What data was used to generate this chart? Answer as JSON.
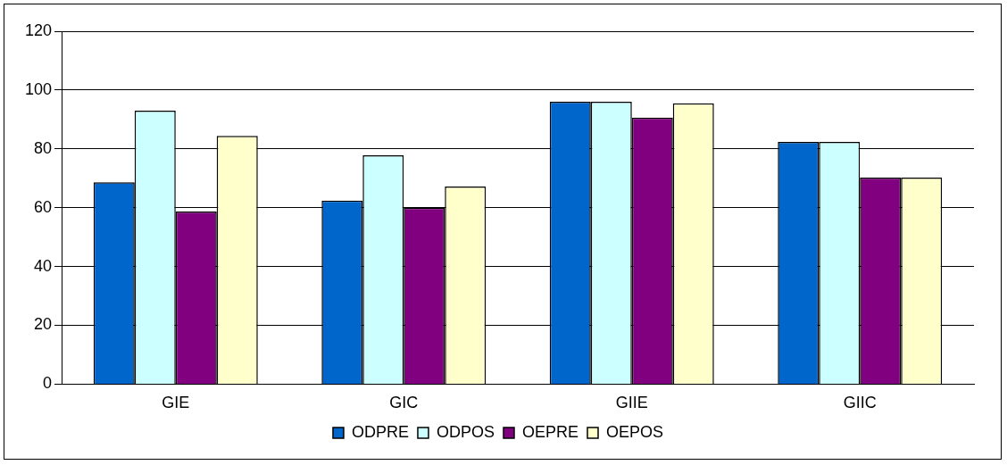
{
  "chart_data": {
    "type": "bar",
    "categories": [
      "GIE",
      "GIC",
      "GIIE",
      "GIIC"
    ],
    "series": [
      {
        "name": "ODPRE",
        "color": "#0066cc",
        "values": [
          68.6,
          62.4,
          96,
          82.4
        ]
      },
      {
        "name": "ODPOS",
        "color": "#ccffff",
        "values": [
          93,
          77.8,
          96,
          82.4
        ]
      },
      {
        "name": "OEPRE",
        "color": "#800080",
        "values": [
          58.7,
          60,
          90.6,
          70.2
        ]
      },
      {
        "name": "OEPOS",
        "color": "#ffffcc",
        "values": [
          84.4,
          67.2,
          95.5,
          70.2
        ]
      }
    ],
    "ylim": [
      0,
      120
    ],
    "yticks": [
      0,
      20,
      40,
      60,
      80,
      100,
      120
    ],
    "grid": "y",
    "legend": "bottom"
  }
}
